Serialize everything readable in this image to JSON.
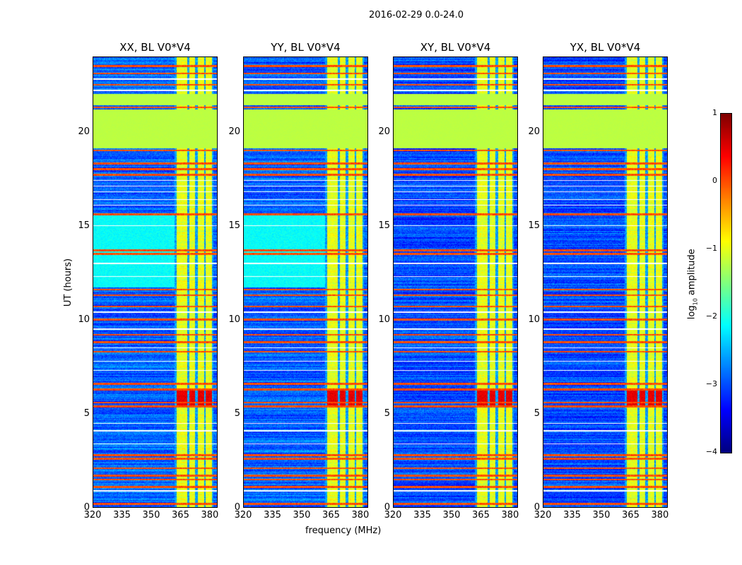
{
  "chart_data": {
    "type": "heatmap",
    "title": "2016-02-29 0.0-24.0",
    "xlabel": "frequency (MHz)",
    "ylabel": "UT (hours)",
    "xlim": [
      320,
      384
    ],
    "ylim": [
      0,
      24
    ],
    "xticks": [
      "320",
      "335",
      "350",
      "365",
      "380"
    ],
    "xtick_values": [
      320,
      335,
      350,
      365,
      380
    ],
    "yticks": [
      "0",
      "5",
      "10",
      "15",
      "20"
    ],
    "ytick_values": [
      0,
      5,
      10,
      15,
      20
    ],
    "colormap": "jet",
    "colorbar": {
      "label": "log10 amplitude",
      "label_main": "log",
      "label_sub": "10",
      "label_rest": " amplitude",
      "range": [
        -4,
        1
      ],
      "ticks": [
        "1",
        "0",
        "−1",
        "−2",
        "−3",
        "−4"
      ],
      "tick_values": [
        1,
        0,
        -1,
        -2,
        -3,
        -4
      ]
    },
    "panels": [
      {
        "title": "XX, BL V0*V4",
        "background_level": -2.9,
        "cyan_block": [
          11.7,
          15.6
        ]
      },
      {
        "title": "YY, BL V0*V4",
        "background_level": -2.9,
        "cyan_block": [
          11.7,
          15.6
        ]
      },
      {
        "title": "XY, BL V0*V4",
        "background_level": -3.0,
        "cyan_block": null
      },
      {
        "title": "YX, BL V0*V4",
        "background_level": -3.0,
        "cyan_block": null
      }
    ],
    "rfi_frequency_bands_MHz": [
      [
        363,
        368.5
      ],
      [
        369.5,
        372.5
      ],
      [
        374,
        377
      ],
      [
        378,
        381
      ]
    ],
    "rfi_band_level": -1.0,
    "burst_hours": [
      5.4,
      6.3
    ],
    "burst_level": 0.5,
    "saturated_hour_blocks": [
      [
        19.1,
        21.2
      ],
      [
        21.4,
        22.0
      ]
    ],
    "saturated_level": -1.2,
    "strong_row_hours": [
      0.2,
      1.1,
      1.5,
      1.7,
      2.1,
      2.6,
      2.8,
      5.4,
      5.6,
      6.3,
      6.6,
      8.3,
      8.8,
      9.2,
      10.0,
      10.7,
      11.3,
      11.6,
      13.5,
      13.7,
      15.6,
      17.7,
      18.0,
      18.3,
      19.0,
      21.3,
      22.5,
      23.1,
      23.5
    ],
    "strong_row_level": 0.0,
    "blank_row_hours": [
      0.9,
      3.4,
      4.1,
      4.5,
      7.3,
      7.8,
      8.5,
      9.5,
      10.4,
      12.3,
      13.0,
      15.0,
      16.1,
      16.4,
      16.8,
      17.1,
      17.4,
      22.2,
      22.8
    ]
  }
}
